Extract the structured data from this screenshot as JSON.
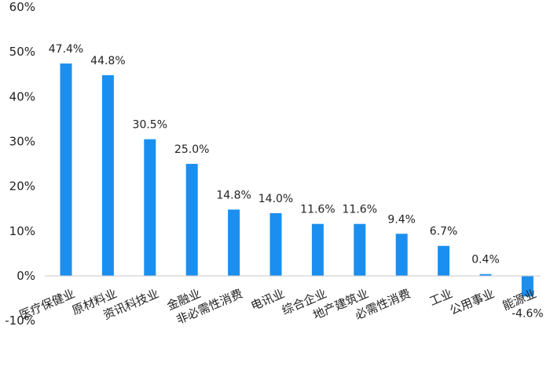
{
  "chart_data": {
    "type": "bar",
    "categories": [
      "医疗保健业",
      "原材料业",
      "资讯科技业",
      "金融业",
      "非必需性消费",
      "电讯业",
      "综合企业",
      "地产建筑业",
      "必需性消费",
      "工业",
      "公用事业",
      "能源业"
    ],
    "values": [
      47.4,
      44.8,
      30.5,
      25.0,
      14.8,
      14.0,
      11.6,
      11.6,
      9.4,
      6.7,
      0.4,
      -4.6
    ],
    "data_labels": [
      "47.4%",
      "44.8%",
      "30.5%",
      "25.0%",
      "14.8%",
      "14.0%",
      "11.6%",
      "11.6%",
      "9.4%",
      "6.7%",
      "0.4%",
      "-4.6%"
    ],
    "yticks": [
      60,
      50,
      40,
      30,
      20,
      10,
      0,
      -10
    ],
    "ytick_labels": [
      "60%",
      "50%",
      "40%",
      "30%",
      "20%",
      "10%",
      "0%",
      "-10%"
    ],
    "ylim": [
      -10,
      60
    ],
    "bar_color": "#1a8ff0",
    "axis_color": "#c9c9c9",
    "grid": false,
    "legend": "none",
    "title": "",
    "xlabel": "",
    "ylabel": ""
  }
}
